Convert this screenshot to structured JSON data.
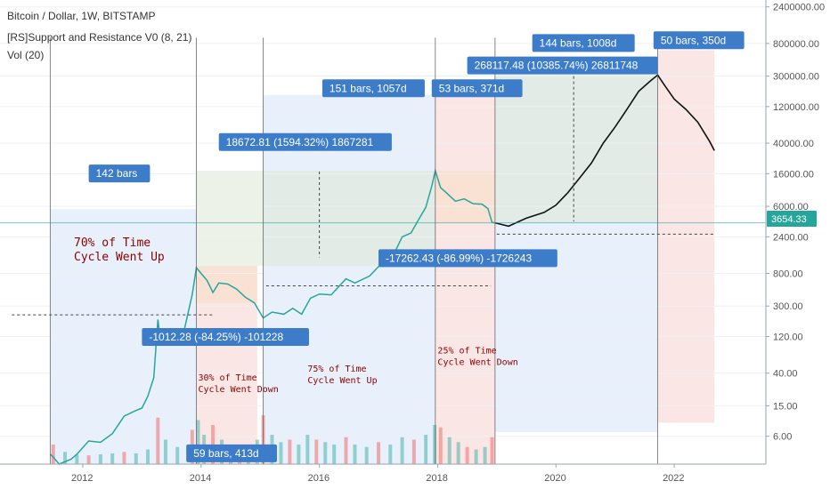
{
  "header": {
    "title": "Bitcoin / Dollar, 1W, BITSTAMP",
    "indicator": "[RS]Support and Resistance V0 (8, 21)",
    "volume": "Vol (20)"
  },
  "price_badge": {
    "label": "3654.33",
    "color": "#26a69a"
  },
  "colors": {
    "up": "#26a69a",
    "down": "#ef5350",
    "label_bg": "#3d7cc9",
    "annotation": "#8b0000",
    "blue_zone": "#d6e4f7",
    "red_zone": "#f7d2d2",
    "green_zone": "#dfe8d5",
    "orange_zone": "#f7dcc4",
    "projection": "#111111"
  },
  "chart_data": {
    "type": "line",
    "scale": "log",
    "y_ticks": [
      6,
      15,
      40,
      120,
      300,
      800,
      2400,
      6000,
      16000,
      40000,
      120000,
      300000,
      800000,
      2400000
    ],
    "y_tick_labels": [
      "6.00",
      "15.00",
      "40.00",
      "120.00",
      "300.00",
      "800.00",
      "2400.00",
      "6000.00",
      "16000.00",
      "40000.00",
      "120000.00",
      "300000.00",
      "800000.00",
      "2400000.00"
    ],
    "x_ticks": [
      "2012",
      "2014",
      "2016",
      "2018",
      "2020",
      "2022"
    ],
    "series": [
      {
        "values": [
          [
            2011.45,
            3.5
          ],
          [
            2011.5,
            3.2
          ],
          [
            2011.6,
            2.6
          ],
          [
            2011.8,
            3.0
          ],
          [
            2011.9,
            3.5
          ],
          [
            2012.1,
            5.2
          ],
          [
            2012.3,
            5.0
          ],
          [
            2012.5,
            6.5
          ],
          [
            2012.7,
            11
          ],
          [
            2012.9,
            13
          ],
          [
            2013.0,
            14
          ],
          [
            2013.1,
            20
          ],
          [
            2013.2,
            35
          ],
          [
            2013.27,
            200
          ],
          [
            2013.32,
            95
          ],
          [
            2013.5,
            95
          ],
          [
            2013.7,
            130
          ],
          [
            2013.85,
            420
          ],
          [
            2013.92,
            950
          ],
          [
            2014.0,
            800
          ],
          [
            2014.1,
            650
          ],
          [
            2014.2,
            450
          ],
          [
            2014.3,
            600
          ],
          [
            2014.45,
            580
          ],
          [
            2014.6,
            500
          ],
          [
            2014.75,
            390
          ],
          [
            2014.9,
            330
          ],
          [
            2015.05,
            210
          ],
          [
            2015.2,
            250
          ],
          [
            2015.4,
            235
          ],
          [
            2015.55,
            280
          ],
          [
            2015.7,
            235
          ],
          [
            2015.85,
            380
          ],
          [
            2016.0,
            430
          ],
          [
            2016.2,
            420
          ],
          [
            2016.45,
            680
          ],
          [
            2016.6,
            600
          ],
          [
            2016.85,
            740
          ],
          [
            2017.0,
            980
          ],
          [
            2017.2,
            1150
          ],
          [
            2017.4,
            2400
          ],
          [
            2017.55,
            2700
          ],
          [
            2017.7,
            4300
          ],
          [
            2017.8,
            5800
          ],
          [
            2017.9,
            11000
          ],
          [
            2017.96,
            17500
          ],
          [
            2018.05,
            10500
          ],
          [
            2018.15,
            9000
          ],
          [
            2018.3,
            7000
          ],
          [
            2018.45,
            7500
          ],
          [
            2018.6,
            6500
          ],
          [
            2018.75,
            6400
          ],
          [
            2018.85,
            5600
          ],
          [
            2018.92,
            3700
          ],
          [
            2018.97,
            3654.33
          ]
        ]
      },
      {
        "values": [
          [
            2018.97,
            3654.33
          ],
          [
            2019.2,
            3300
          ],
          [
            2019.5,
            4200
          ],
          [
            2019.8,
            5000
          ],
          [
            2020.0,
            6200
          ],
          [
            2020.2,
            9000
          ],
          [
            2020.4,
            14000
          ],
          [
            2020.6,
            22000
          ],
          [
            2020.8,
            40000
          ],
          [
            2021.0,
            65000
          ],
          [
            2021.2,
            110000
          ],
          [
            2021.4,
            190000
          ],
          [
            2021.6,
            260000
          ],
          [
            2021.72,
            310000
          ],
          [
            2021.85,
            220000
          ],
          [
            2022.0,
            150000
          ],
          [
            2022.2,
            110000
          ],
          [
            2022.4,
            75000
          ],
          [
            2022.6,
            42000
          ],
          [
            2022.68,
            32000
          ]
        ]
      }
    ],
    "volume_bars": [
      [
        2011.5,
        0.4
      ],
      [
        2011.7,
        0.25
      ],
      [
        2011.9,
        0.2
      ],
      [
        2012.1,
        0.18
      ],
      [
        2012.3,
        0.2
      ],
      [
        2012.5,
        0.22
      ],
      [
        2012.7,
        0.25
      ],
      [
        2012.9,
        0.22
      ],
      [
        2013.1,
        0.3
      ],
      [
        2013.27,
        0.95
      ],
      [
        2013.4,
        0.5
      ],
      [
        2013.6,
        0.35
      ],
      [
        2013.85,
        0.7
      ],
      [
        2013.95,
        0.9
      ],
      [
        2014.05,
        0.6
      ],
      [
        2014.2,
        0.8
      ],
      [
        2014.35,
        0.5
      ],
      [
        2014.5,
        0.4
      ],
      [
        2014.65,
        0.35
      ],
      [
        2014.8,
        0.4
      ],
      [
        2014.95,
        0.5
      ],
      [
        2015.05,
        1.0
      ],
      [
        2015.2,
        0.6
      ],
      [
        2015.35,
        0.45
      ],
      [
        2015.5,
        0.5
      ],
      [
        2015.65,
        0.4
      ],
      [
        2015.8,
        0.6
      ],
      [
        2015.95,
        0.5
      ],
      [
        2016.1,
        0.45
      ],
      [
        2016.25,
        0.4
      ],
      [
        2016.45,
        0.55
      ],
      [
        2016.6,
        0.4
      ],
      [
        2016.8,
        0.35
      ],
      [
        2017.0,
        0.45
      ],
      [
        2017.2,
        0.4
      ],
      [
        2017.4,
        0.55
      ],
      [
        2017.6,
        0.5
      ],
      [
        2017.8,
        0.6
      ],
      [
        2017.95,
        0.8
      ],
      [
        2018.05,
        0.75
      ],
      [
        2018.2,
        0.55
      ],
      [
        2018.35,
        0.45
      ],
      [
        2018.5,
        0.35
      ],
      [
        2018.65,
        0.3
      ],
      [
        2018.8,
        0.35
      ],
      [
        2018.92,
        0.55
      ]
    ]
  },
  "zones": [
    {
      "x0": 2011.45,
      "x1": 2013.92,
      "y0": 2.6,
      "y1": 5500,
      "color": "blue_zone"
    },
    {
      "x0": 2013.92,
      "x1": 2014.95,
      "y0": 2.6,
      "y1": 1000,
      "color": "red_zone"
    },
    {
      "x0": 2013.92,
      "x1": 2015.05,
      "y0": 1000,
      "y1": 17500,
      "color": "green_zone"
    },
    {
      "x0": 2015.05,
      "x1": 2017.96,
      "y0": 2.6,
      "y1": 170000,
      "color": "blue_zone"
    },
    {
      "x0": 2015.05,
      "x1": 2017.96,
      "y0": 1000,
      "y1": 17500,
      "color": "green_zone"
    },
    {
      "x0": 2017.96,
      "x1": 2018.97,
      "y0": 2.6,
      "y1": 170000,
      "color": "red_zone"
    },
    {
      "x0": 2018.97,
      "x1": 2021.72,
      "y0": 6.8,
      "y1": 310000,
      "color": "blue_zone"
    },
    {
      "x0": 2018.97,
      "x1": 2021.72,
      "y0": 3654,
      "y1": 310000,
      "color": "green_zone"
    },
    {
      "x0": 2021.72,
      "x1": 2022.68,
      "y0": 9,
      "y1": 650000,
      "color": "red_zone"
    },
    {
      "x0": 2013.92,
      "x1": 2014.95,
      "y0": 330,
      "y1": 1000,
      "color": "orange_zone"
    },
    {
      "x0": 2017.96,
      "x1": 2018.97,
      "y0": 3600,
      "y1": 17500,
      "color": "orange_zone"
    }
  ],
  "labels": [
    {
      "text": "142 bars",
      "x": 2012.1,
      "y": 21000
    },
    {
      "text": "18672.81 (1594.32%) 1867281",
      "x": 2014.3,
      "y": 54000
    },
    {
      "text": "151 bars, 1057d",
      "x": 2016.05,
      "y": 272000
    },
    {
      "text": "53 bars, 371d",
      "x": 2017.9,
      "y": 272000
    },
    {
      "text": "144 bars, 1008d",
      "x": 2019.6,
      "y": 1060000
    },
    {
      "text": "50 bars, 350d",
      "x": 2021.65,
      "y": 1150000
    },
    {
      "text": "268117.48 (10385.74%) 26811748",
      "x": 2018.5,
      "y": 540000
    },
    {
      "text": "-17262.43 (-86.99%) -1726243",
      "x": 2017.0,
      "y": 1650
    },
    {
      "text": "-1012.28 (-84.25%) -101228",
      "x": 2013.0,
      "y": 155
    },
    {
      "text": "59 bars, 413d",
      "x": 2013.75,
      "y": 4.7
    }
  ],
  "annotations": [
    {
      "lines": [
        "70% of Time",
        "Cycle Went Up"
      ],
      "x": 2011.85,
      "y": 1800,
      "size": 13
    },
    {
      "lines": [
        "30% of Time",
        "Cycle Went Down"
      ],
      "x": 2013.95,
      "y": 32,
      "size": 10
    },
    {
      "lines": [
        "75% of Time",
        "Cycle Went Up"
      ],
      "x": 2015.8,
      "y": 42,
      "size": 10
    },
    {
      "lines": [
        "25% of Time",
        "Cycle Went Down"
      ],
      "x": 2018.0,
      "y": 72,
      "size": 10
    }
  ]
}
